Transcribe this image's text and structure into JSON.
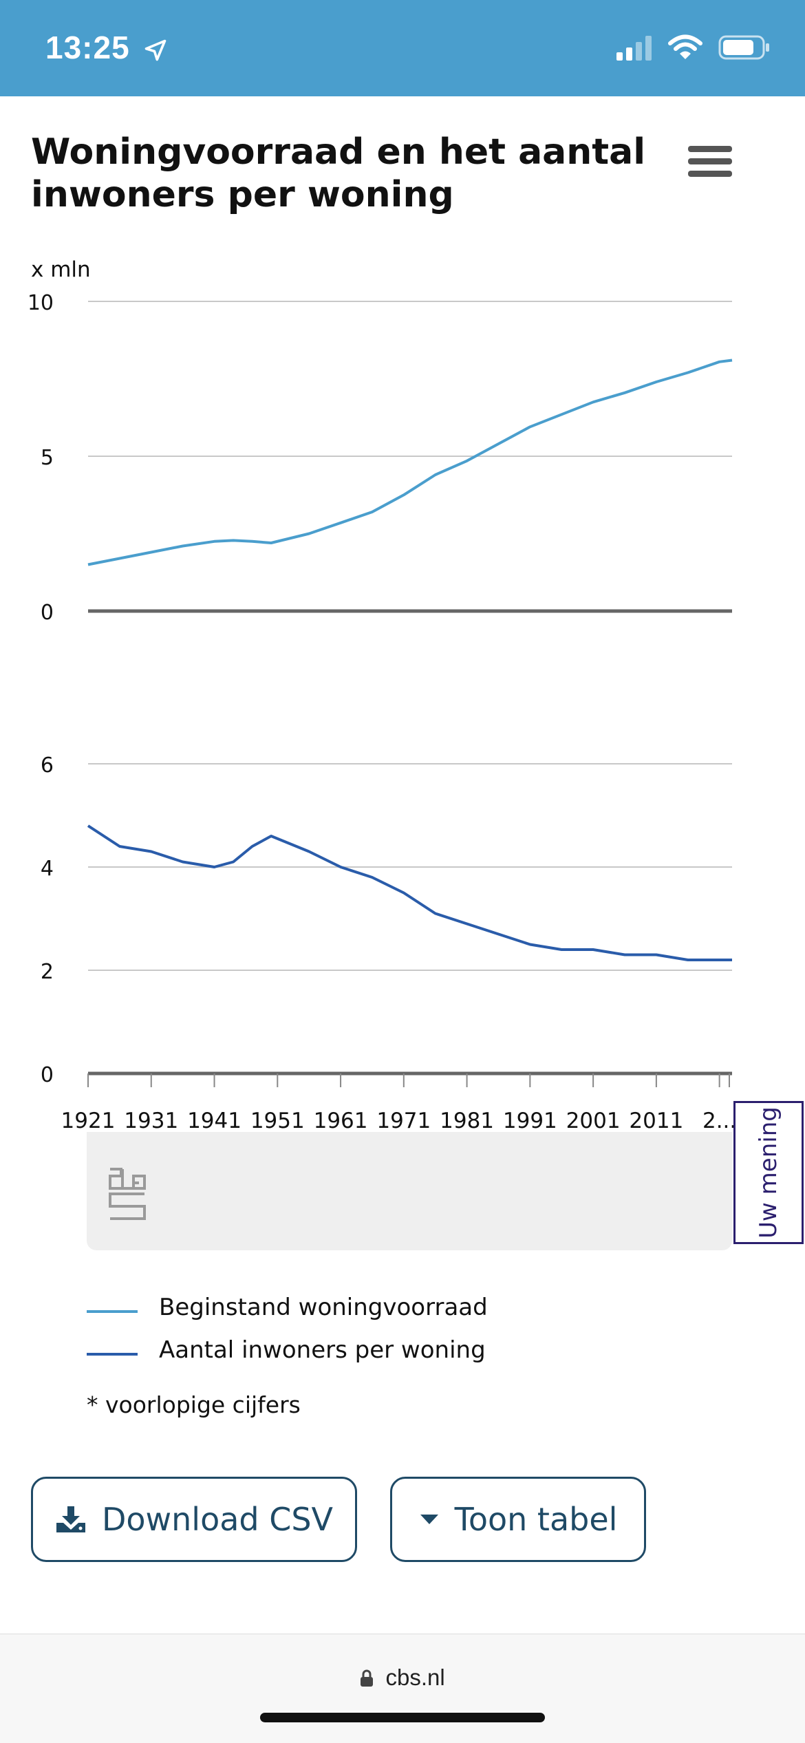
{
  "status_bar": {
    "time": "13:25"
  },
  "chart_title": "Woningvoorraad en het aantal inwoners per woning",
  "chart_data": {
    "type": "line",
    "title": "Woningvoorraad en het aantal inwoners per woning",
    "xlabel": "",
    "x": [
      1921,
      1926,
      1931,
      1936,
      1941,
      1944,
      1947,
      1950,
      1956,
      1961,
      1966,
      1971,
      1976,
      1981,
      1986,
      1991,
      1996,
      2001,
      2006,
      2011,
      2016,
      2021,
      2023
    ],
    "x_ticks": [
      "1921",
      "1931",
      "1941",
      "1951",
      "1961",
      "1971",
      "1981",
      "1991",
      "2001",
      "2011",
      "2..."
    ],
    "panels": [
      {
        "ylabel": "x mln",
        "ylim": [
          0,
          10
        ],
        "yticks": [
          "10",
          "5",
          "0"
        ],
        "series": [
          {
            "name": "Beginstand woningvoorraad",
            "color": "#4a9ecd",
            "values": [
              1.5,
              1.7,
              1.9,
              2.1,
              2.25,
              2.28,
              2.25,
              2.2,
              2.5,
              2.85,
              3.2,
              3.75,
              4.4,
              4.85,
              5.4,
              5.95,
              6.35,
              6.75,
              7.05,
              7.4,
              7.7,
              8.05,
              8.1
            ]
          }
        ]
      },
      {
        "ylabel": "",
        "ylim": [
          0,
          6
        ],
        "yticks": [
          "6",
          "4",
          "2",
          "0"
        ],
        "series": [
          {
            "name": "Aantal inwoners per woning",
            "color": "#2a5caa",
            "values": [
              4.8,
              4.4,
              4.3,
              4.1,
              4.0,
              4.1,
              4.4,
              4.6,
              4.3,
              4.0,
              3.8,
              3.5,
              3.1,
              2.9,
              2.7,
              2.5,
              2.4,
              2.4,
              2.3,
              2.3,
              2.2,
              2.2,
              2.2
            ]
          }
        ]
      }
    ]
  },
  "legend": [
    {
      "label": "Beginstand woningvoorraad",
      "color": "#4a9ecd"
    },
    {
      "label": "Aantal inwoners per woning",
      "color": "#2a5caa"
    }
  ],
  "footnote": "* voorlopige cijfers",
  "feedback_label": "Uw mening",
  "buttons": {
    "download": "Download CSV",
    "table": "Toon tabel"
  },
  "browser": {
    "url": "cbs.nl"
  },
  "colors": {
    "status_bar": "#4a9ecd",
    "button_text": "#1f4a66",
    "feedback": "#2b1f6e"
  }
}
